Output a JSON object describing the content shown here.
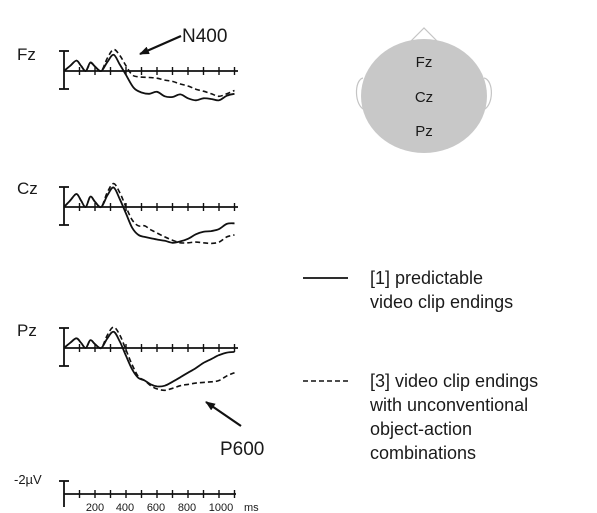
{
  "chart_data": {
    "type": "line",
    "x_unit": "ms",
    "x_ticks": [
      200,
      400,
      600,
      800,
      1000
    ],
    "scale_bar": "-2µV",
    "channels": [
      {
        "name": "Fz",
        "series": [
          {
            "name": "[1] predictable video clip endings",
            "style": "solid",
            "points": [
              [
                0,
                0
              ],
              [
                40,
                0.8
              ],
              [
                80,
                1.6
              ],
              [
                110,
                0.8
              ],
              [
                140,
                0
              ],
              [
                170,
                1.3
              ],
              [
                200,
                0.7
              ],
              [
                240,
                0
              ],
              [
                280,
                1.4
              ],
              [
                320,
                2.5
              ],
              [
                360,
                1.0
              ],
              [
                400,
                -0.6
              ],
              [
                450,
                -2.6
              ],
              [
                500,
                -3.3
              ],
              [
                550,
                -3.5
              ],
              [
                600,
                -3.2
              ],
              [
                650,
                -3.9
              ],
              [
                700,
                -4.0
              ],
              [
                750,
                -3.6
              ],
              [
                800,
                -4.2
              ],
              [
                850,
                -4.5
              ],
              [
                900,
                -4.2
              ],
              [
                950,
                -4.3
              ],
              [
                1000,
                -4.5
              ],
              [
                1050,
                -3.8
              ],
              [
                1100,
                -3.5
              ]
            ]
          },
          {
            "name": "[3] video clip endings with unconventional object-action combinations",
            "style": "dashed",
            "points": [
              [
                0,
                0
              ],
              [
                40,
                0.8
              ],
              [
                80,
                1.6
              ],
              [
                110,
                0.8
              ],
              [
                140,
                0
              ],
              [
                170,
                1.2
              ],
              [
                200,
                0.7
              ],
              [
                240,
                0
              ],
              [
                280,
                2.0
              ],
              [
                320,
                3.3
              ],
              [
                360,
                2.4
              ],
              [
                400,
                0.8
              ],
              [
                440,
                -0.6
              ],
              [
                480,
                -0.9
              ],
              [
                550,
                -1.0
              ],
              [
                600,
                -1.1
              ],
              [
                650,
                -1.4
              ],
              [
                700,
                -1.6
              ],
              [
                750,
                -2.0
              ],
              [
                800,
                -2.3
              ],
              [
                850,
                -2.8
              ],
              [
                900,
                -3.1
              ],
              [
                950,
                -3.5
              ],
              [
                1000,
                -3.9
              ],
              [
                1050,
                -3.5
              ],
              [
                1100,
                -3.0
              ]
            ]
          }
        ]
      },
      {
        "name": "Cz",
        "series": [
          {
            "name": "[1] predictable video clip endings",
            "style": "solid",
            "points": [
              [
                0,
                0
              ],
              [
                40,
                1.0
              ],
              [
                80,
                2.0
              ],
              [
                110,
                1.0
              ],
              [
                140,
                0
              ],
              [
                170,
                1.6
              ],
              [
                200,
                0.8
              ],
              [
                240,
                0
              ],
              [
                280,
                1.8
              ],
              [
                320,
                3.0
              ],
              [
                360,
                1.2
              ],
              [
                400,
                -1.0
              ],
              [
                440,
                -3.2
              ],
              [
                480,
                -4.3
              ],
              [
                520,
                -4.6
              ],
              [
                560,
                -4.8
              ],
              [
                600,
                -5.0
              ],
              [
                650,
                -5.2
              ],
              [
                700,
                -5.5
              ],
              [
                750,
                -5.3
              ],
              [
                800,
                -4.9
              ],
              [
                850,
                -4.2
              ],
              [
                900,
                -3.8
              ],
              [
                950,
                -3.7
              ],
              [
                1000,
                -3.4
              ],
              [
                1050,
                -2.6
              ],
              [
                1100,
                -2.5
              ]
            ]
          },
          {
            "name": "[3] video clip endings with unconventional object-action combinations",
            "style": "dashed",
            "points": [
              [
                0,
                0
              ],
              [
                40,
                1.0
              ],
              [
                80,
                2.0
              ],
              [
                110,
                1.0
              ],
              [
                140,
                0
              ],
              [
                170,
                1.6
              ],
              [
                200,
                0.8
              ],
              [
                240,
                0
              ],
              [
                280,
                2.3
              ],
              [
                320,
                3.6
              ],
              [
                360,
                2.2
              ],
              [
                400,
                0
              ],
              [
                440,
                -2.0
              ],
              [
                480,
                -2.9
              ],
              [
                520,
                -2.9
              ],
              [
                560,
                -3.5
              ],
              [
                600,
                -4.0
              ],
              [
                650,
                -4.6
              ],
              [
                700,
                -5.1
              ],
              [
                750,
                -5.5
              ],
              [
                800,
                -5.5
              ],
              [
                850,
                -5.4
              ],
              [
                900,
                -5.5
              ],
              [
                950,
                -5.6
              ],
              [
                1000,
                -5.4
              ],
              [
                1050,
                -4.6
              ],
              [
                1100,
                -4.3
              ]
            ]
          }
        ]
      },
      {
        "name": "Pz",
        "series": [
          {
            "name": "[1] predictable video clip endings",
            "style": "solid",
            "points": [
              [
                0,
                0
              ],
              [
                40,
                0.8
              ],
              [
                80,
                1.5
              ],
              [
                110,
                0.8
              ],
              [
                140,
                0
              ],
              [
                170,
                1.2
              ],
              [
                200,
                0.6
              ],
              [
                240,
                0
              ],
              [
                280,
                1.5
              ],
              [
                320,
                2.5
              ],
              [
                360,
                1.0
              ],
              [
                400,
                -1.2
              ],
              [
                440,
                -3.3
              ],
              [
                480,
                -4.6
              ],
              [
                520,
                -5.0
              ],
              [
                560,
                -5.6
              ],
              [
                600,
                -5.9
              ],
              [
                650,
                -5.8
              ],
              [
                700,
                -5.2
              ],
              [
                750,
                -4.5
              ],
              [
                800,
                -3.8
              ],
              [
                850,
                -3.1
              ],
              [
                900,
                -2.3
              ],
              [
                950,
                -1.7
              ],
              [
                1000,
                -1.1
              ],
              [
                1050,
                -0.7
              ],
              [
                1100,
                -0.6
              ]
            ]
          },
          {
            "name": "[3] video clip endings with unconventional object-action combinations",
            "style": "dashed",
            "points": [
              [
                0,
                0
              ],
              [
                40,
                0.8
              ],
              [
                80,
                1.5
              ],
              [
                110,
                0.8
              ],
              [
                140,
                0
              ],
              [
                170,
                1.2
              ],
              [
                200,
                0.6
              ],
              [
                240,
                0
              ],
              [
                280,
                2.0
              ],
              [
                320,
                3.2
              ],
              [
                360,
                2.0
              ],
              [
                400,
                -0.3
              ],
              [
                440,
                -2.6
              ],
              [
                480,
                -4.4
              ],
              [
                520,
                -5.0
              ],
              [
                560,
                -5.8
              ],
              [
                600,
                -6.3
              ],
              [
                650,
                -6.5
              ],
              [
                700,
                -6.2
              ],
              [
                750,
                -5.8
              ],
              [
                800,
                -5.6
              ],
              [
                850,
                -5.4
              ],
              [
                900,
                -5.3
              ],
              [
                950,
                -5.2
              ],
              [
                1000,
                -5.0
              ],
              [
                1050,
                -4.3
              ],
              [
                1100,
                -3.8
              ]
            ]
          }
        ]
      }
    ]
  },
  "annotations": {
    "n400": "N400",
    "p600": "P600"
  },
  "head": {
    "electrodes": [
      "Fz",
      "Cz",
      "Pz"
    ]
  },
  "legend": {
    "solid_lines": [
      "[1] predictable",
      "video clip endings"
    ],
    "dashed_lines": [
      "[3] video clip endings",
      "with unconventional",
      "object-action",
      "combinations"
    ]
  },
  "colors": {
    "line": "#111111",
    "head_fill": "#c8c8c8",
    "head_outline": "#bfbfbf",
    "text": "#1a1a1a"
  }
}
